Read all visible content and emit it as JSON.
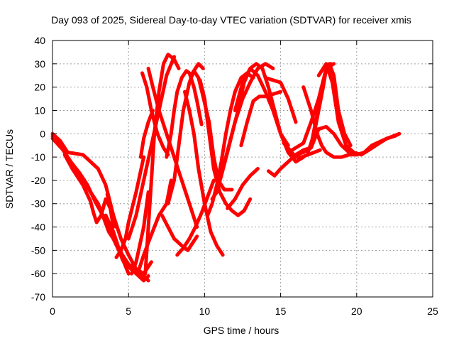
{
  "chart_data": {
    "type": "scatter",
    "title": "Day 093 of 2025, Sidereal Day-to-day VTEC variation (SDTVAR) for receiver xmis",
    "xlabel": "GPS time / hours",
    "ylabel": "SDTVAR / TECUs",
    "xlim": [
      0,
      25
    ],
    "ylim": [
      -70,
      40
    ],
    "xticks": [
      "0",
      "5",
      "10",
      "15",
      "20",
      "25"
    ],
    "yticks": [
      "40",
      "30",
      "20",
      "10",
      "0",
      "-10",
      "-20",
      "-30",
      "-40",
      "-50",
      "-60",
      "-70"
    ],
    "grid": true,
    "legend": "none",
    "marker": "plus",
    "color": "#ff0000",
    "series": [
      {
        "x": [
          0.0,
          0.5,
          1.0,
          2.0,
          3.0,
          3.5,
          4.0,
          4.5,
          5.0,
          5.5,
          6.0,
          6.5
        ],
        "y": [
          0,
          -3,
          -8,
          -9,
          -15,
          -22,
          -35,
          -45,
          -52,
          -58,
          -60,
          -55
        ]
      },
      {
        "x": [
          0.0,
          0.5,
          1.0,
          1.5,
          2.0,
          2.5,
          3.0,
          3.5,
          4.0,
          4.5,
          5.0
        ],
        "y": [
          -1,
          -5,
          -10,
          -15,
          -20,
          -25,
          -30,
          -38,
          -45,
          -52,
          -60
        ]
      },
      {
        "x": [
          0.0,
          0.7,
          1.2,
          1.8,
          2.3,
          2.8,
          3.3,
          3.7,
          4.2,
          4.6,
          5.0,
          5.5,
          6.0,
          6.3
        ],
        "y": [
          -2,
          -7,
          -12,
          -17,
          -22,
          -29,
          -35,
          -42,
          -47,
          -52,
          -56,
          -58,
          -61,
          -63
        ]
      },
      {
        "x": [
          0.8,
          1.3,
          2.0,
          2.5,
          2.7,
          2.9,
          3.2,
          3.5,
          3.8,
          4.0
        ],
        "y": [
          -9,
          -15,
          -22,
          -29,
          -34,
          -38,
          -35,
          -28,
          -32,
          -40
        ]
      },
      {
        "x": [
          3.5,
          4.0,
          4.3,
          4.6,
          5.0,
          5.5,
          6.0,
          6.3
        ],
        "y": [
          -35,
          -42,
          -48,
          -54,
          -57,
          -60,
          -63,
          -61
        ]
      },
      {
        "x": [
          3.6,
          3.8,
          4.0,
          4.2
        ],
        "y": [
          -26,
          -30,
          -35,
          -40
        ]
      },
      {
        "x": [
          4.2,
          4.5,
          4.8,
          5.0,
          5.5,
          6.0
        ],
        "y": [
          -53,
          -50,
          -45,
          -38,
          -25,
          -10
        ]
      },
      {
        "x": [
          5.0,
          5.5,
          6.0,
          6.5,
          7.0,
          7.5,
          8.0
        ],
        "y": [
          -45,
          -35,
          -20,
          -5,
          10,
          25,
          33
        ]
      },
      {
        "x": [
          5.2,
          5.5,
          6.0,
          6.3
        ],
        "y": [
          -60,
          -55,
          -40,
          -25
        ]
      },
      {
        "x": [
          5.7,
          6.0,
          6.4,
          7.0,
          7.5,
          7.8
        ],
        "y": [
          -58,
          -52,
          -45,
          -35,
          -30,
          -20
        ]
      },
      {
        "x": [
          5.9,
          6.2,
          6.5,
          6.9,
          7.3,
          7.6
        ],
        "y": [
          26,
          20,
          10,
          0,
          -6,
          -9
        ]
      },
      {
        "x": [
          6.1,
          6.3,
          6.5,
          6.7,
          7.0,
          7.3,
          7.6,
          8.0,
          8.3
        ],
        "y": [
          -60,
          -40,
          -20,
          0,
          18,
          30,
          34,
          32,
          28
        ]
      },
      {
        "x": [
          5.8,
          6.0,
          6.3,
          6.6
        ],
        "y": [
          -10,
          -2,
          5,
          10
        ]
      },
      {
        "x": [
          6.3,
          6.6,
          7.0,
          7.5,
          8.0,
          8.5,
          9.0,
          9.5
        ],
        "y": [
          28,
          20,
          10,
          0,
          -10,
          -20,
          -30,
          -40
        ]
      },
      {
        "x": [
          7.5,
          7.8,
          8.0,
          8.2,
          8.5,
          8.8,
          9.0,
          9.3,
          9.5,
          9.8
        ],
        "y": [
          -10,
          0,
          10,
          18,
          24,
          27,
          26,
          20,
          14,
          4
        ]
      },
      {
        "x": [
          7.6,
          8.0,
          8.3,
          8.6,
          9.0,
          9.3,
          9.6,
          9.9,
          10.3,
          10.6,
          10.9,
          11.3,
          11.8
        ],
        "y": [
          -30,
          -20,
          -5,
          10,
          22,
          27,
          24,
          16,
          5,
          -10,
          -20,
          -24,
          -24
        ]
      },
      {
        "x": [
          7.2,
          7.6,
          8.0,
          8.5,
          8.9,
          9.2,
          9.5
        ],
        "y": [
          -35,
          -40,
          -45,
          -48,
          -50,
          -47,
          -44
        ]
      },
      {
        "x": [
          8.2,
          8.6,
          9.0,
          9.4,
          9.8,
          10.2,
          10.6
        ],
        "y": [
          -52,
          -49,
          -45,
          -40,
          -34,
          -27,
          -20
        ]
      },
      {
        "x": [
          8.7,
          9.0,
          9.3,
          9.6,
          10.0,
          10.4,
          10.8,
          11.2
        ],
        "y": [
          18,
          10,
          0,
          -15,
          -30,
          -42,
          -48,
          -52
        ]
      },
      {
        "x": [
          9.1,
          9.4,
          9.6,
          9.9
        ],
        "y": [
          25,
          28,
          30,
          28
        ]
      },
      {
        "x": [
          9.7,
          10.0,
          10.3,
          10.6,
          11.0,
          11.4,
          11.8,
          12.2,
          12.6,
          13.0
        ],
        "y": [
          23,
          15,
          0,
          -15,
          -25,
          -30,
          -33,
          -35,
          -33,
          -28
        ]
      },
      {
        "x": [
          10.2,
          10.5,
          10.8,
          11.1,
          11.4,
          11.7,
          12.0,
          12.4,
          12.8,
          13.2
        ],
        "y": [
          -35,
          -30,
          -22,
          -12,
          0,
          10,
          18,
          24,
          26,
          24
        ]
      },
      {
        "x": [
          10.5,
          10.8,
          11.1,
          11.5,
          12.0,
          12.5,
          13.0,
          13.5,
          14.0,
          14.5
        ],
        "y": [
          -28,
          -25,
          -18,
          -8,
          5,
          15,
          22,
          28,
          30,
          28
        ]
      },
      {
        "x": [
          11.0,
          11.4,
          11.8,
          12.2,
          12.6,
          13.0,
          13.4,
          13.8,
          14.2,
          14.6,
          15.0,
          15.5
        ],
        "y": [
          -20,
          -10,
          0,
          10,
          22,
          28,
          30,
          28,
          20,
          10,
          0,
          -5
        ]
      },
      {
        "x": [
          11.5,
          12.0,
          12.5,
          13.0,
          13.5
        ],
        "y": [
          -32,
          -28,
          -22,
          -18,
          -15
        ]
      },
      {
        "x": [
          12.0,
          12.5,
          13.0,
          13.5,
          14.0,
          14.5,
          15.0,
          15.5,
          16.0,
          16.5
        ],
        "y": [
          10,
          22,
          28,
          25,
          18,
          10,
          0,
          -8,
          -12,
          -10
        ]
      },
      {
        "x": [
          12.4,
          12.8,
          13.2,
          13.6,
          14.0,
          14.5,
          15.0
        ],
        "y": [
          -5,
          5,
          14,
          16,
          16,
          17,
          18
        ]
      },
      {
        "x": [
          14.0,
          14.5,
          15.0,
          15.5,
          16.0
        ],
        "y": [
          24,
          23,
          22,
          15,
          5
        ]
      },
      {
        "x": [
          14.2,
          14.6,
          15.0,
          15.5,
          16.0,
          16.5,
          17.0
        ],
        "y": [
          -16,
          -18,
          -15,
          -12,
          -9,
          -7,
          -6
        ]
      },
      {
        "x": [
          15.5,
          16.0,
          16.5,
          17.0,
          17.5,
          18.0,
          18.5
        ],
        "y": [
          -8,
          -6,
          -4,
          5,
          15,
          28,
          30
        ]
      },
      {
        "x": [
          16.5,
          17.0,
          17.4,
          17.7,
          18.0,
          18.5,
          19.0,
          19.5,
          20.0
        ],
        "y": [
          20,
          10,
          0,
          -5,
          -8,
          -10,
          -10,
          -9,
          -9
        ]
      },
      {
        "x": [
          16.8,
          17.2,
          17.5,
          17.8,
          18.0,
          18.3
        ],
        "y": [
          -8,
          0,
          10,
          20,
          28,
          30
        ]
      },
      {
        "x": [
          17.0,
          17.3,
          17.6,
          17.9,
          18.2,
          18.5,
          18.8,
          19.2,
          19.6
        ],
        "y": [
          -5,
          5,
          15,
          25,
          30,
          25,
          10,
          0,
          -5
        ]
      },
      {
        "x": [
          17.5,
          17.8,
          18.0,
          18.4,
          18.8,
          19.3,
          19.8,
          20.3,
          20.8,
          21.5,
          22.0,
          22.5,
          22.8
        ],
        "y": [
          25,
          28,
          30,
          22,
          5,
          -5,
          -8,
          -9,
          -7,
          -4,
          -2,
          -1,
          0
        ]
      },
      {
        "x": [
          16.0,
          16.5,
          17.0,
          17.5,
          18.0,
          18.5,
          19.0,
          19.5,
          20.0,
          20.5,
          21.0,
          22.0,
          22.8
        ],
        "y": [
          -9,
          -8,
          -6,
          2,
          3,
          0,
          -5,
          -8,
          -9,
          -8,
          -5,
          -2,
          0
        ]
      },
      {
        "x": [
          15.2,
          15.6,
          16.0,
          16.4,
          16.8,
          17.2,
          17.6
        ],
        "y": [
          -4,
          -7,
          -10,
          -10,
          -9,
          -8,
          -7
        ]
      }
    ]
  }
}
